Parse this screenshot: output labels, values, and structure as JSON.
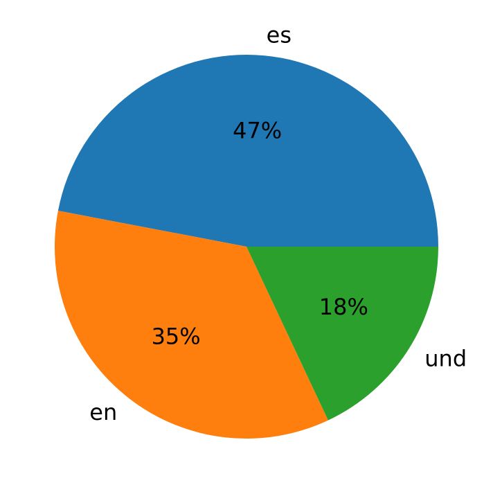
{
  "chart_data": {
    "type": "pie",
    "categories": [
      "es",
      "en",
      "und"
    ],
    "values": [
      47,
      35,
      18
    ],
    "value_labels": [
      "47%",
      "35%",
      "18%"
    ],
    "colors": [
      "#1f77b4",
      "#ff7f0e",
      "#2ca02c"
    ]
  }
}
